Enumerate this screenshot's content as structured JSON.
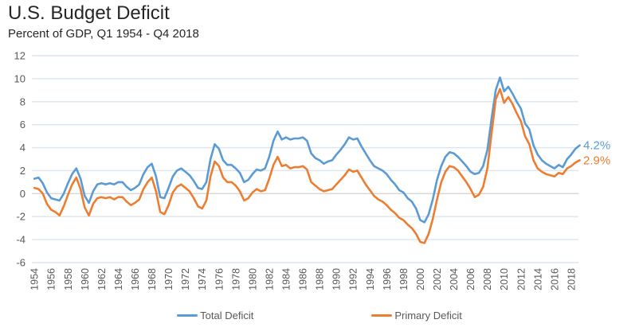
{
  "title": "U.S. Budget Deficit",
  "subtitle": "Percent of GDP, Q1 1954 - Q4 2018",
  "colors": {
    "total_line": "#5B9BD5",
    "primary_line": "#ED7D31",
    "gridline": "#DAE5F2",
    "zero_line": "#D6D6D6",
    "axis_text": "#595959",
    "title_text": "#262626"
  },
  "chart_data": {
    "type": "line",
    "title": "U.S. Budget Deficit",
    "subtitle": "Percent of GDP, Q1 1954 - Q4 2018",
    "xlabel": "",
    "ylabel": "Percent of GDP",
    "grid": true,
    "legend_position": "bottom",
    "xlim": [
      1953.7,
      2019.05
    ],
    "ylim": [
      -6,
      12
    ],
    "y_ticks": [
      -6,
      -4,
      -2,
      0,
      2,
      4,
      6,
      8,
      10,
      12
    ],
    "x_tick_years": [
      1954,
      1956,
      1958,
      1960,
      1962,
      1964,
      1966,
      1968,
      1970,
      1972,
      1974,
      1976,
      1978,
      1980,
      1982,
      1984,
      1986,
      1988,
      1990,
      1992,
      1994,
      1996,
      1998,
      2000,
      2002,
      2004,
      2006,
      2008,
      2010,
      2012,
      2014,
      2016,
      2018
    ],
    "x_start": 1954,
    "x_step": 0.5,
    "series": [
      {
        "name": "Total Deficit",
        "color": "#5B9BD5",
        "end_label": "4.2%",
        "values": [
          1.3,
          1.4,
          0.9,
          0.1,
          -0.4,
          -0.5,
          -0.6,
          0.0,
          0.9,
          1.7,
          2.2,
          1.3,
          -0.2,
          -0.8,
          0.2,
          0.8,
          0.9,
          0.8,
          0.9,
          0.8,
          1.0,
          1.0,
          0.6,
          0.3,
          0.5,
          0.8,
          1.7,
          2.3,
          2.6,
          1.5,
          -0.3,
          -0.4,
          0.5,
          1.5,
          2.0,
          2.2,
          1.9,
          1.6,
          1.1,
          0.5,
          0.4,
          1.0,
          3.0,
          4.3,
          3.9,
          2.9,
          2.5,
          2.5,
          2.2,
          1.8,
          1.0,
          1.2,
          1.7,
          2.1,
          2.0,
          2.2,
          3.2,
          4.6,
          5.4,
          4.7,
          4.9,
          4.7,
          4.8,
          4.8,
          4.9,
          4.6,
          3.5,
          3.1,
          2.9,
          2.6,
          2.8,
          2.9,
          3.4,
          3.8,
          4.3,
          4.9,
          4.7,
          4.8,
          4.1,
          3.5,
          2.9,
          2.4,
          2.2,
          2.0,
          1.7,
          1.2,
          0.8,
          0.3,
          0.1,
          -0.4,
          -0.7,
          -1.3,
          -2.3,
          -2.5,
          -1.8,
          -0.5,
          1.2,
          2.4,
          3.2,
          3.6,
          3.5,
          3.2,
          2.8,
          2.4,
          1.9,
          1.7,
          1.8,
          2.4,
          3.8,
          6.5,
          9.0,
          10.1,
          8.9,
          9.3,
          8.7,
          8.0,
          7.4,
          6.1,
          5.6,
          4.2,
          3.4,
          2.9,
          2.6,
          2.4,
          2.2,
          2.5,
          2.3,
          3.0,
          3.4,
          3.9,
          4.2
        ]
      },
      {
        "name": "Primary Deficit",
        "color": "#ED7D31",
        "end_label": "2.9%",
        "values": [
          0.5,
          0.4,
          0.0,
          -0.9,
          -1.4,
          -1.6,
          -1.9,
          -1.1,
          -0.1,
          0.8,
          1.4,
          0.4,
          -1.2,
          -1.9,
          -0.9,
          -0.4,
          -0.3,
          -0.4,
          -0.3,
          -0.5,
          -0.3,
          -0.3,
          -0.7,
          -1.0,
          -0.8,
          -0.5,
          0.4,
          1.0,
          1.4,
          0.2,
          -1.6,
          -1.8,
          -1.0,
          0.1,
          0.6,
          0.8,
          0.5,
          0.2,
          -0.4,
          -1.1,
          -1.3,
          -0.6,
          1.5,
          2.8,
          2.4,
          1.4,
          1.0,
          1.0,
          0.7,
          0.2,
          -0.6,
          -0.4,
          0.1,
          0.4,
          0.2,
          0.3,
          1.3,
          2.5,
          3.2,
          2.4,
          2.5,
          2.2,
          2.3,
          2.3,
          2.4,
          2.1,
          1.0,
          0.7,
          0.4,
          0.2,
          0.3,
          0.4,
          0.8,
          1.2,
          1.6,
          2.1,
          1.9,
          2.0,
          1.4,
          0.8,
          0.3,
          -0.2,
          -0.5,
          -0.7,
          -1.0,
          -1.4,
          -1.7,
          -2.1,
          -2.3,
          -2.7,
          -3.0,
          -3.5,
          -4.2,
          -4.3,
          -3.5,
          -2.2,
          -0.5,
          1.0,
          1.9,
          2.4,
          2.3,
          2.0,
          1.5,
          1.0,
          0.4,
          -0.3,
          -0.1,
          0.6,
          2.2,
          5.2,
          8.2,
          9.1,
          7.9,
          8.4,
          7.8,
          7.0,
          6.3,
          5.0,
          4.3,
          2.9,
          2.2,
          1.9,
          1.7,
          1.6,
          1.5,
          1.8,
          1.7,
          2.2,
          2.4,
          2.7,
          2.9
        ]
      }
    ]
  }
}
